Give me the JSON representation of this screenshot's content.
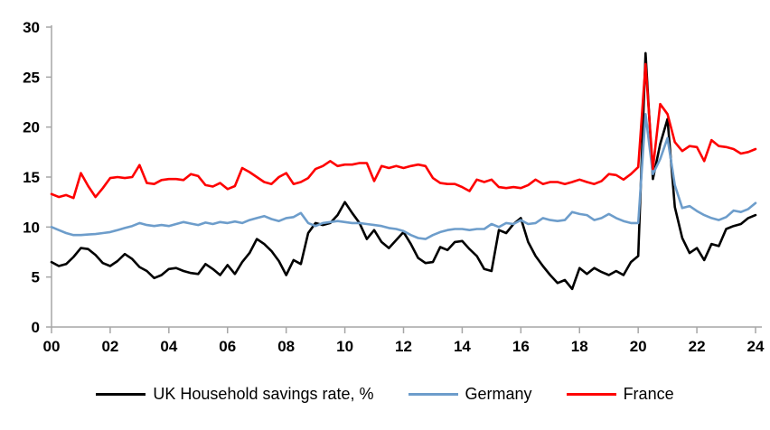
{
  "chart": {
    "background_color": "#ffffff",
    "axis_color": "#a6a6a6",
    "tick_label_color": "#000000"
  },
  "chart_data": {
    "type": "line",
    "title": "",
    "xlabel": "",
    "ylabel": "",
    "x_unit": "year (quarterly data)",
    "x_start_year": 2000,
    "x_step_years": 0.25,
    "x_end_year": 2024,
    "x_tick_labels": [
      "00",
      "02",
      "04",
      "06",
      "08",
      "10",
      "12",
      "14",
      "16",
      "18",
      "20",
      "22",
      "24"
    ],
    "y_ticks": [
      0,
      5,
      10,
      15,
      20,
      25,
      30
    ],
    "ylim": [
      0,
      30
    ],
    "grid": false,
    "legend_position": "bottom",
    "series": [
      {
        "name": "UK Household savings rate, %",
        "color": "#000000",
        "values": [
          6.5,
          6.1,
          6.3,
          7.0,
          7.9,
          7.8,
          7.2,
          6.4,
          6.1,
          6.6,
          7.3,
          6.8,
          6.0,
          5.6,
          4.9,
          5.2,
          5.8,
          5.9,
          5.6,
          5.4,
          5.3,
          6.3,
          5.8,
          5.2,
          6.2,
          5.3,
          6.5,
          7.4,
          8.8,
          8.3,
          7.6,
          6.6,
          5.2,
          6.7,
          6.3,
          9.4,
          10.4,
          10.2,
          10.4,
          11.2,
          12.5,
          11.4,
          10.4,
          8.8,
          9.7,
          8.5,
          7.9,
          8.7,
          9.5,
          8.3,
          6.9,
          6.4,
          6.5,
          8.0,
          7.7,
          8.5,
          8.6,
          7.8,
          7.1,
          5.8,
          5.6,
          9.7,
          9.4,
          10.3,
          10.9,
          8.5,
          7.1,
          6.1,
          5.2,
          4.4,
          4.7,
          3.8,
          5.9,
          5.3,
          5.9,
          5.5,
          5.2,
          5.6,
          5.2,
          6.5,
          7.1,
          27.4,
          14.8,
          18.3,
          20.8,
          12.0,
          8.9,
          7.4,
          7.9,
          6.7,
          8.3,
          8.1,
          9.8,
          10.1,
          10.3,
          10.9,
          11.2
        ]
      },
      {
        "name": "Germany",
        "color": "#6d9dcb",
        "values": [
          10.0,
          9.7,
          9.4,
          9.2,
          9.2,
          9.25,
          9.3,
          9.4,
          9.5,
          9.7,
          9.9,
          10.1,
          10.4,
          10.2,
          10.1,
          10.2,
          10.1,
          10.3,
          10.5,
          10.35,
          10.2,
          10.45,
          10.3,
          10.5,
          10.4,
          10.55,
          10.4,
          10.7,
          10.9,
          11.1,
          10.8,
          10.6,
          10.9,
          11.0,
          11.4,
          10.4,
          10.1,
          10.4,
          10.5,
          10.6,
          10.5,
          10.4,
          10.4,
          10.3,
          10.2,
          10.1,
          9.9,
          9.8,
          9.6,
          9.2,
          8.9,
          8.8,
          9.2,
          9.5,
          9.7,
          9.8,
          9.8,
          9.7,
          9.8,
          9.8,
          10.3,
          10.0,
          10.4,
          10.3,
          10.7,
          10.3,
          10.4,
          10.9,
          10.7,
          10.6,
          10.7,
          11.5,
          11.3,
          11.2,
          10.7,
          10.9,
          11.3,
          10.9,
          10.6,
          10.4,
          10.4,
          21.3,
          15.3,
          16.8,
          18.9,
          14.2,
          11.9,
          12.1,
          11.6,
          11.2,
          10.9,
          10.7,
          11.0,
          11.65,
          11.5,
          11.8,
          12.4
        ]
      },
      {
        "name": "France",
        "color": "#fe0000",
        "values": [
          13.3,
          13.0,
          13.2,
          12.9,
          15.4,
          14.1,
          13.0,
          13.9,
          14.9,
          15.0,
          14.9,
          15.0,
          16.2,
          14.4,
          14.3,
          14.7,
          14.8,
          14.8,
          14.7,
          15.3,
          15.1,
          14.2,
          14.05,
          14.4,
          13.8,
          14.1,
          15.9,
          15.5,
          15.0,
          14.5,
          14.3,
          15.0,
          15.4,
          14.3,
          14.5,
          14.9,
          15.8,
          16.1,
          16.6,
          16.1,
          16.25,
          16.25,
          16.4,
          16.4,
          14.6,
          16.1,
          15.9,
          16.1,
          15.9,
          16.1,
          16.25,
          16.1,
          14.9,
          14.4,
          14.3,
          14.3,
          14.0,
          13.6,
          14.75,
          14.5,
          14.75,
          14.0,
          13.9,
          14.0,
          13.9,
          14.2,
          14.75,
          14.3,
          14.5,
          14.5,
          14.3,
          14.5,
          14.75,
          14.5,
          14.3,
          14.6,
          15.3,
          15.2,
          14.75,
          15.3,
          16.0,
          26.3,
          15.8,
          22.3,
          21.3,
          18.5,
          17.6,
          18.1,
          18.0,
          16.6,
          18.7,
          18.1,
          18.0,
          17.8,
          17.35,
          17.5,
          17.8
        ]
      }
    ]
  },
  "legend": {
    "uk_label": "UK Household savings rate, %",
    "germany_label": "Germany",
    "france_label": "France"
  }
}
